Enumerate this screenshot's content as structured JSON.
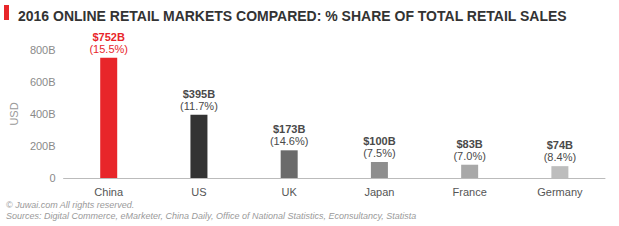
{
  "chart_data": {
    "type": "bar",
    "title": "2016 ONLINE RETAIL MARKETS COMPARED: % SHARE OF TOTAL RETAIL SALES",
    "y_label": "USD",
    "categories": [
      "China",
      "US",
      "UK",
      "Japan",
      "France",
      "Germany"
    ],
    "values": [
      752,
      395,
      173,
      100,
      83,
      74
    ],
    "value_labels": [
      "$752B",
      "$395B",
      "$173B",
      "$100B",
      "$83B",
      "$74B"
    ],
    "share_labels": [
      "(15.5%)",
      "(11.7%)",
      "(14.6%)",
      "(7.5%)",
      "(7.0%)",
      "(8.4%)"
    ],
    "colors": [
      "#e8262a",
      "#333333",
      "#6b6b6b",
      "#8e8e8e",
      "#a8a8a8",
      "#bdbdbd"
    ],
    "ylim": [
      0,
      800
    ],
    "yticks": [
      0,
      {
        "value": 200,
        "label": "200B"
      },
      {
        "value": 400,
        "label": "400B"
      },
      {
        "value": 600,
        "label": "600B"
      },
      {
        "value": 800,
        "label": "800B"
      }
    ],
    "grid": false,
    "data_labels": true,
    "annotations": [
      "© Juwai.com All rights reserved.",
      "Sources: Digital Commerce, eMarketer, China Daily, Office of National Statistics, Econsultancy, Statista"
    ]
  }
}
